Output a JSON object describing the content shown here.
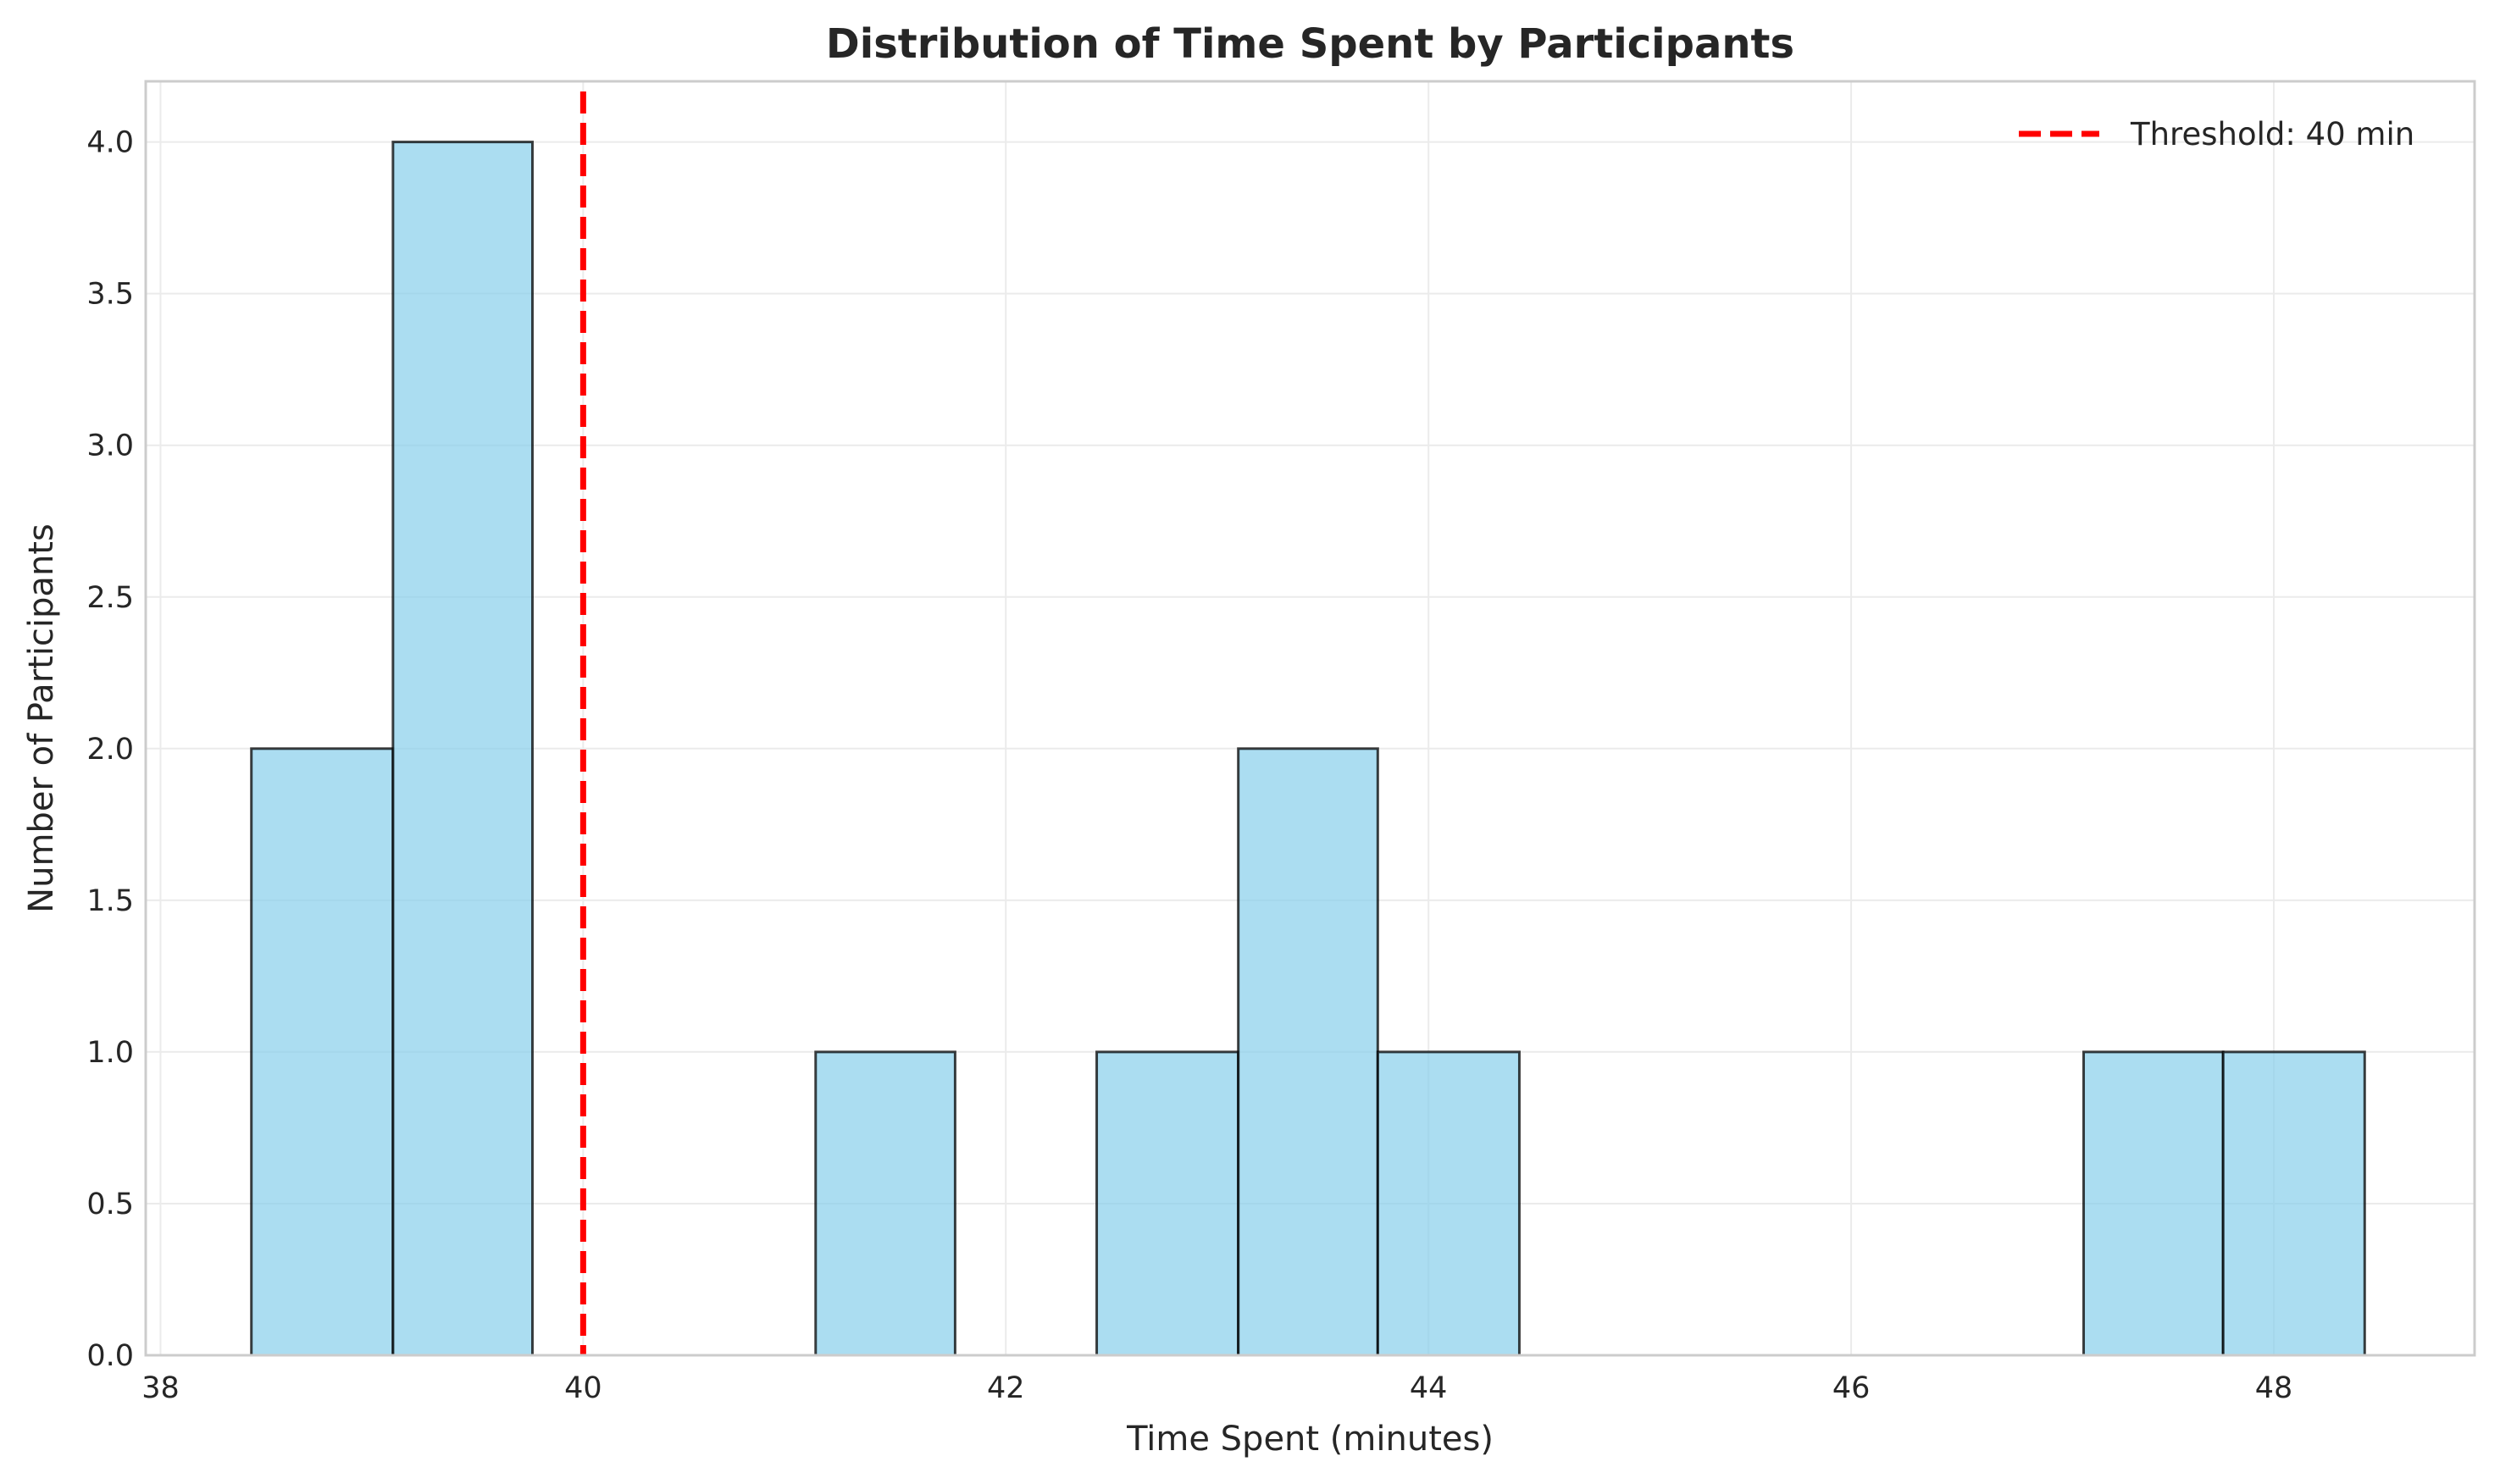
{
  "chart_data": {
    "type": "bar",
    "title": "Distribution of Time Spent by Participants",
    "xlabel": "Time Spent (minutes)",
    "ylabel": "Number of Participants",
    "xlim": [
      37.93,
      48.95
    ],
    "ylim": [
      0,
      4.2
    ],
    "xticks": [
      38,
      40,
      42,
      44,
      46,
      48
    ],
    "yticks": [
      0.0,
      0.5,
      1.0,
      1.5,
      2.0,
      2.5,
      3.0,
      3.5,
      4.0
    ],
    "bins": [
      {
        "x0": 38.43,
        "x1": 39.1,
        "count": 2
      },
      {
        "x0": 39.1,
        "x1": 39.76,
        "count": 4
      },
      {
        "x0": 39.76,
        "x1": 40.43,
        "count": 0
      },
      {
        "x0": 40.43,
        "x1": 41.1,
        "count": 0
      },
      {
        "x0": 41.1,
        "x1": 41.76,
        "count": 1
      },
      {
        "x0": 41.76,
        "x1": 42.43,
        "count": 0
      },
      {
        "x0": 42.43,
        "x1": 43.1,
        "count": 1
      },
      {
        "x0": 43.1,
        "x1": 43.76,
        "count": 2
      },
      {
        "x0": 43.76,
        "x1": 44.43,
        "count": 1
      },
      {
        "x0": 44.43,
        "x1": 45.1,
        "count": 0
      },
      {
        "x0": 45.1,
        "x1": 45.76,
        "count": 0
      },
      {
        "x0": 45.76,
        "x1": 46.43,
        "count": 0
      },
      {
        "x0": 46.43,
        "x1": 47.1,
        "count": 0
      },
      {
        "x0": 47.1,
        "x1": 47.76,
        "count": 1
      },
      {
        "x0": 47.76,
        "x1": 48.43,
        "count": 1
      }
    ],
    "threshold": {
      "value": 40,
      "label": "Threshold: 40 min",
      "color": "#ff0000"
    },
    "bar_color": "#87ceeb",
    "edge_color": "#000000",
    "grid": true,
    "legend_position": "top-right"
  }
}
